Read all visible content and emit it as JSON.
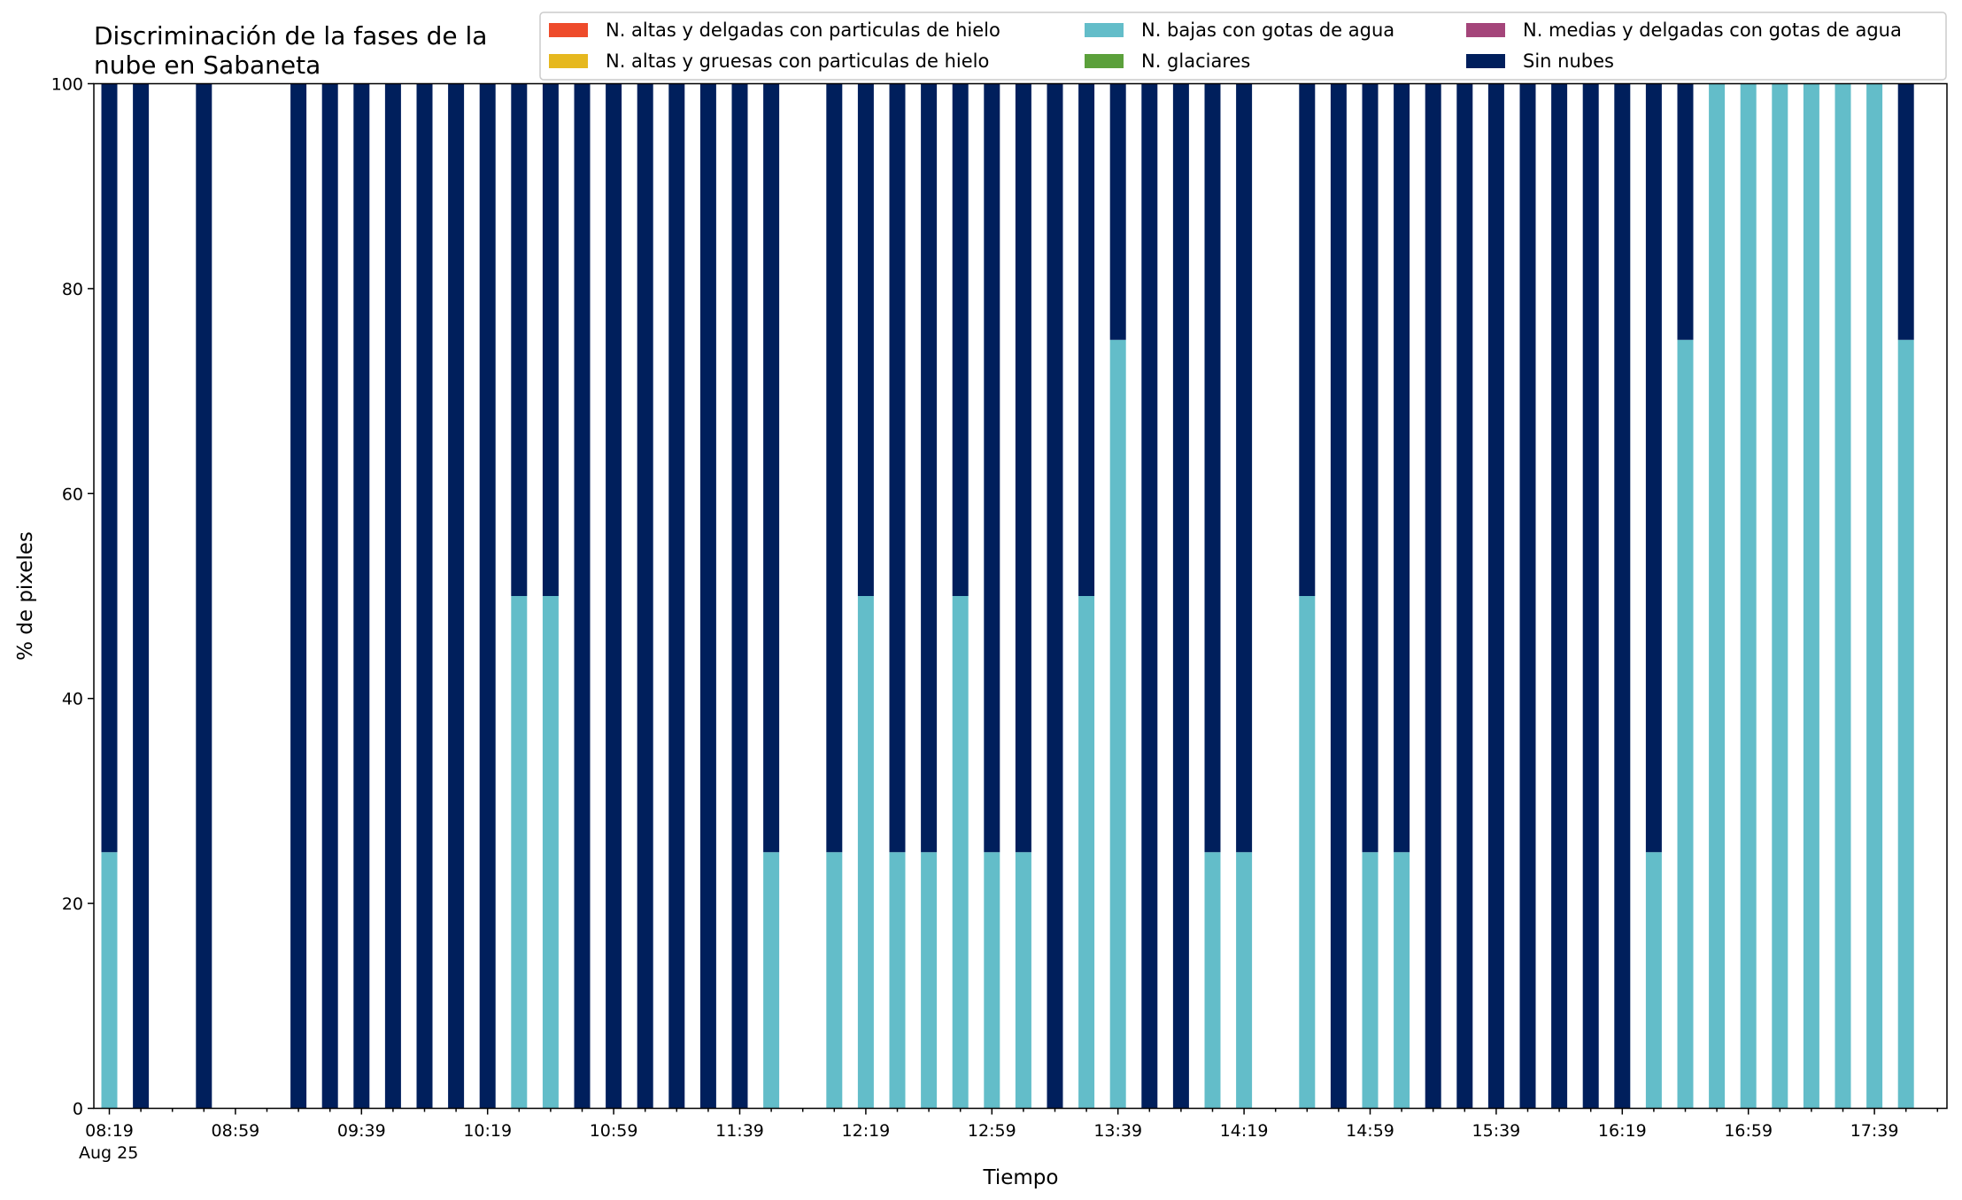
{
  "chart_data": {
    "type": "bar",
    "stacked": true,
    "title_lines": [
      "Discriminación de la fases de la",
      "nube en Sabaneta"
    ],
    "xlabel": "Tiempo",
    "ylabel": "% de pixeles",
    "ylim": [
      0,
      100
    ],
    "yticks": [
      0,
      20,
      40,
      60,
      80,
      100
    ],
    "grid": false,
    "legend_position": "top-right",
    "x_start": "08:19",
    "x_step_minutes": 10,
    "x_tick_labels": [
      "08:19",
      "08:59",
      "09:39",
      "10:19",
      "10:59",
      "11:39",
      "12:19",
      "12:59",
      "13:39",
      "14:19",
      "14:59",
      "15:39",
      "16:19",
      "16:59",
      "17:39"
    ],
    "x_date_label": "Aug 25",
    "categories": [
      "08:19",
      "08:29",
      "08:39",
      "08:49",
      "08:59",
      "09:09",
      "09:19",
      "09:29",
      "09:39",
      "09:49",
      "09:59",
      "10:09",
      "10:19",
      "10:29",
      "10:39",
      "10:49",
      "10:59",
      "11:09",
      "11:19",
      "11:29",
      "11:39",
      "11:49",
      "11:59",
      "12:09",
      "12:19",
      "12:29",
      "12:39",
      "12:49",
      "12:59",
      "13:09",
      "13:19",
      "13:29",
      "13:39",
      "13:49",
      "13:59",
      "14:09",
      "14:19",
      "14:29",
      "14:39",
      "14:49",
      "14:59",
      "15:09",
      "15:19",
      "15:29",
      "15:39",
      "15:49",
      "15:59",
      "16:09",
      "16:19",
      "16:29",
      "16:39",
      "16:49",
      "16:59",
      "17:09",
      "17:19",
      "17:29",
      "17:39",
      "17:49",
      "17:59"
    ],
    "series": [
      {
        "name": "N. altas y delgadas con particulas de hielo",
        "color": "#ee4b2b",
        "values": [
          0,
          0,
          null,
          0,
          null,
          null,
          0,
          0,
          0,
          0,
          0,
          0,
          0,
          0,
          0,
          0,
          0,
          0,
          0,
          0,
          0,
          0,
          null,
          0,
          0,
          0,
          0,
          0,
          0,
          0,
          0,
          0,
          0,
          0,
          0,
          0,
          0,
          0,
          null,
          0,
          0,
          0,
          0,
          0,
          0,
          0,
          0,
          0,
          0,
          0,
          0,
          0,
          0,
          0,
          0,
          0,
          0,
          0,
          null
        ]
      },
      {
        "name": "N. altas y gruesas con particulas de hielo",
        "color": "#e6b81f",
        "values": [
          0,
          0,
          null,
          0,
          null,
          null,
          0,
          0,
          0,
          0,
          0,
          0,
          0,
          0,
          0,
          0,
          0,
          0,
          0,
          0,
          0,
          0,
          null,
          0,
          0,
          0,
          0,
          0,
          0,
          0,
          0,
          0,
          0,
          0,
          0,
          0,
          0,
          0,
          null,
          0,
          0,
          0,
          0,
          0,
          0,
          0,
          0,
          0,
          0,
          0,
          0,
          0,
          0,
          0,
          0,
          0,
          0,
          0,
          null
        ]
      },
      {
        "name": "N. bajas con gotas de agua",
        "color": "#63bdc9",
        "values": [
          25,
          0,
          null,
          0,
          null,
          null,
          0,
          0,
          0,
          0,
          0,
          0,
          0,
          50,
          50,
          0,
          0,
          0,
          0,
          0,
          0,
          25,
          null,
          25,
          50,
          25,
          25,
          50,
          25,
          25,
          0,
          50,
          75,
          0,
          0,
          25,
          25,
          null,
          50,
          0,
          25,
          25,
          0,
          0,
          0,
          0,
          0,
          0,
          0,
          25,
          75,
          100,
          100,
          100,
          100,
          100,
          100,
          75,
          null
        ]
      },
      {
        "name": "N. glaciares",
        "color": "#5ba03b",
        "values": [
          0,
          0,
          null,
          0,
          null,
          null,
          0,
          0,
          0,
          0,
          0,
          0,
          0,
          0,
          0,
          0,
          0,
          0,
          0,
          0,
          0,
          0,
          null,
          0,
          0,
          0,
          0,
          0,
          0,
          0,
          0,
          0,
          0,
          0,
          0,
          0,
          0,
          0,
          null,
          0,
          0,
          0,
          0,
          0,
          0,
          0,
          0,
          0,
          0,
          0,
          0,
          0,
          0,
          0,
          0,
          0,
          0,
          0,
          null
        ]
      },
      {
        "name": "N. medias y delgadas con gotas de agua",
        "color": "#a4457a",
        "values": [
          0,
          0,
          null,
          0,
          null,
          null,
          0,
          0,
          0,
          0,
          0,
          0,
          0,
          0,
          0,
          0,
          0,
          0,
          0,
          0,
          0,
          0,
          null,
          0,
          0,
          0,
          0,
          0,
          0,
          0,
          0,
          0,
          0,
          0,
          0,
          0,
          0,
          0,
          null,
          0,
          0,
          0,
          0,
          0,
          0,
          0,
          0,
          0,
          0,
          0,
          0,
          0,
          0,
          0,
          0,
          0,
          0,
          0,
          null
        ]
      },
      {
        "name": "Sin nubes",
        "color": "#001f5c",
        "values": [
          75,
          100,
          null,
          100,
          null,
          null,
          100,
          100,
          100,
          100,
          100,
          100,
          100,
          50,
          50,
          100,
          100,
          100,
          100,
          100,
          100,
          75,
          null,
          75,
          50,
          75,
          75,
          50,
          75,
          75,
          100,
          50,
          25,
          100,
          100,
          75,
          75,
          null,
          50,
          100,
          75,
          75,
          100,
          100,
          100,
          100,
          100,
          100,
          100,
          75,
          25,
          0,
          0,
          0,
          0,
          0,
          0,
          25,
          null
        ]
      }
    ]
  }
}
